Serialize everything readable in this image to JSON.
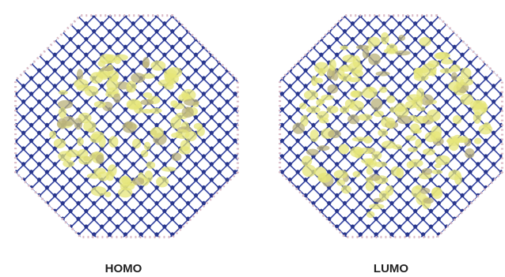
{
  "panels": [
    {
      "label": "HOMO"
    },
    {
      "label": "LUMO"
    }
  ]
}
